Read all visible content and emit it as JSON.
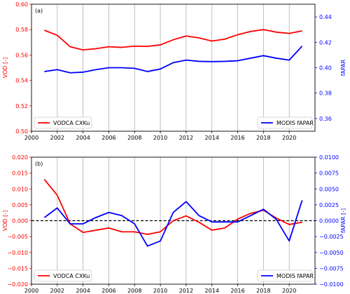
{
  "chart_data": [
    {
      "type": "line",
      "panel_label": "(a)",
      "x": [
        2001,
        2002,
        2003,
        2004,
        2005,
        2006,
        2007,
        2008,
        2009,
        2010,
        2011,
        2012,
        2013,
        2014,
        2015,
        2016,
        2017,
        2018,
        2019,
        2020,
        2021
      ],
      "xlim": [
        2000,
        2022
      ],
      "xticks": [
        2000,
        2002,
        2004,
        2006,
        2008,
        2010,
        2012,
        2014,
        2016,
        2018,
        2020
      ],
      "xtick_labels": [
        "2000",
        "2002",
        "2004",
        "2006",
        "2008",
        "2010",
        "2012",
        "2014",
        "2016",
        "2018",
        "2020"
      ],
      "ylabel_left": "VOD [-]",
      "ylim_left": [
        0.5,
        0.6
      ],
      "yticks_left": [
        "0.50",
        "0.52",
        "0.54",
        "0.56",
        "0.58",
        "0.60"
      ],
      "ylabel_right": "fAPAR",
      "ylim_right": [
        0.35,
        0.45
      ],
      "yticks_right": [
        "0.36",
        "0.38",
        "0.40",
        "0.42",
        "0.44"
      ],
      "grid": "vertical",
      "series": [
        {
          "name": "VODCA CXKu",
          "axis": "left",
          "color": "#ff0000",
          "values": [
            0.5795,
            0.5755,
            0.5665,
            0.564,
            0.565,
            0.5665,
            0.566,
            0.567,
            0.5668,
            0.568,
            0.572,
            0.575,
            0.5735,
            0.571,
            0.5725,
            0.576,
            0.5785,
            0.58,
            0.578,
            0.577,
            0.579
          ],
          "legend_position": "lower-left"
        },
        {
          "name": "MODIS fAPAR",
          "axis": "right",
          "color": "#0000ff",
          "values": [
            0.397,
            0.3985,
            0.396,
            0.3965,
            0.3985,
            0.4,
            0.4,
            0.3995,
            0.397,
            0.399,
            0.404,
            0.406,
            0.405,
            0.4048,
            0.405,
            0.4055,
            0.4075,
            0.4095,
            0.4075,
            0.406,
            0.417
          ],
          "legend_position": "lower-right"
        }
      ]
    },
    {
      "type": "line",
      "panel_label": "(b)",
      "x": [
        2001,
        2002,
        2003,
        2004,
        2005,
        2006,
        2007,
        2008,
        2009,
        2010,
        2011,
        2012,
        2013,
        2014,
        2015,
        2016,
        2017,
        2018,
        2019,
        2020,
        2021
      ],
      "xlim": [
        2000,
        2022
      ],
      "xticks": [
        2000,
        2002,
        2004,
        2006,
        2008,
        2010,
        2012,
        2014,
        2016,
        2018,
        2020
      ],
      "xtick_labels": [
        "2000",
        "2002",
        "2004",
        "2006",
        "2008",
        "2010",
        "2012",
        "2014",
        "2016",
        "2018",
        "2020"
      ],
      "ylabel_left": "VOD [-]",
      "ylim_left": [
        -0.02,
        0.02
      ],
      "yticks_left": [
        "−0.020",
        "−0.015",
        "−0.010",
        "−0.005",
        "0.000",
        "0.005",
        "0.010",
        "0.015",
        "0.020"
      ],
      "ylabel_right": "fAPAR [-]",
      "ylim_right": [
        -0.01,
        0.01
      ],
      "yticks_right": [
        "−0.0100",
        "−0.0075",
        "−0.0050",
        "−0.0025",
        "0.0000",
        "0.0025",
        "0.0050",
        "0.0075",
        "0.0100"
      ],
      "grid": "vertical",
      "zero_line": "dashed",
      "series": [
        {
          "name": "VODCA CXKu",
          "axis": "left",
          "color": "#ff0000",
          "values": [
            0.013,
            0.008,
            -0.001,
            -0.0037,
            -0.003,
            -0.0023,
            -0.0035,
            -0.0035,
            -0.0043,
            -0.0035,
            0.0,
            0.0015,
            -0.0005,
            -0.003,
            -0.0023,
            0.0005,
            0.0023,
            0.0033,
            0.0008,
            -0.0012,
            -0.0005
          ],
          "legend_position": "lower-left"
        },
        {
          "name": "MODIS fAPAR",
          "axis": "right",
          "color": "#0000ff",
          "values": [
            0.0005,
            0.002,
            -0.0005,
            -0.0005,
            0.0005,
            0.0013,
            0.0008,
            -0.0005,
            -0.004,
            -0.0032,
            0.0013,
            0.003,
            0.0008,
            -0.0002,
            -0.0002,
            -0.0002,
            0.0008,
            0.0018,
            0.0002,
            -0.0032,
            0.0032
          ],
          "legend_position": "lower-right"
        }
      ]
    }
  ]
}
